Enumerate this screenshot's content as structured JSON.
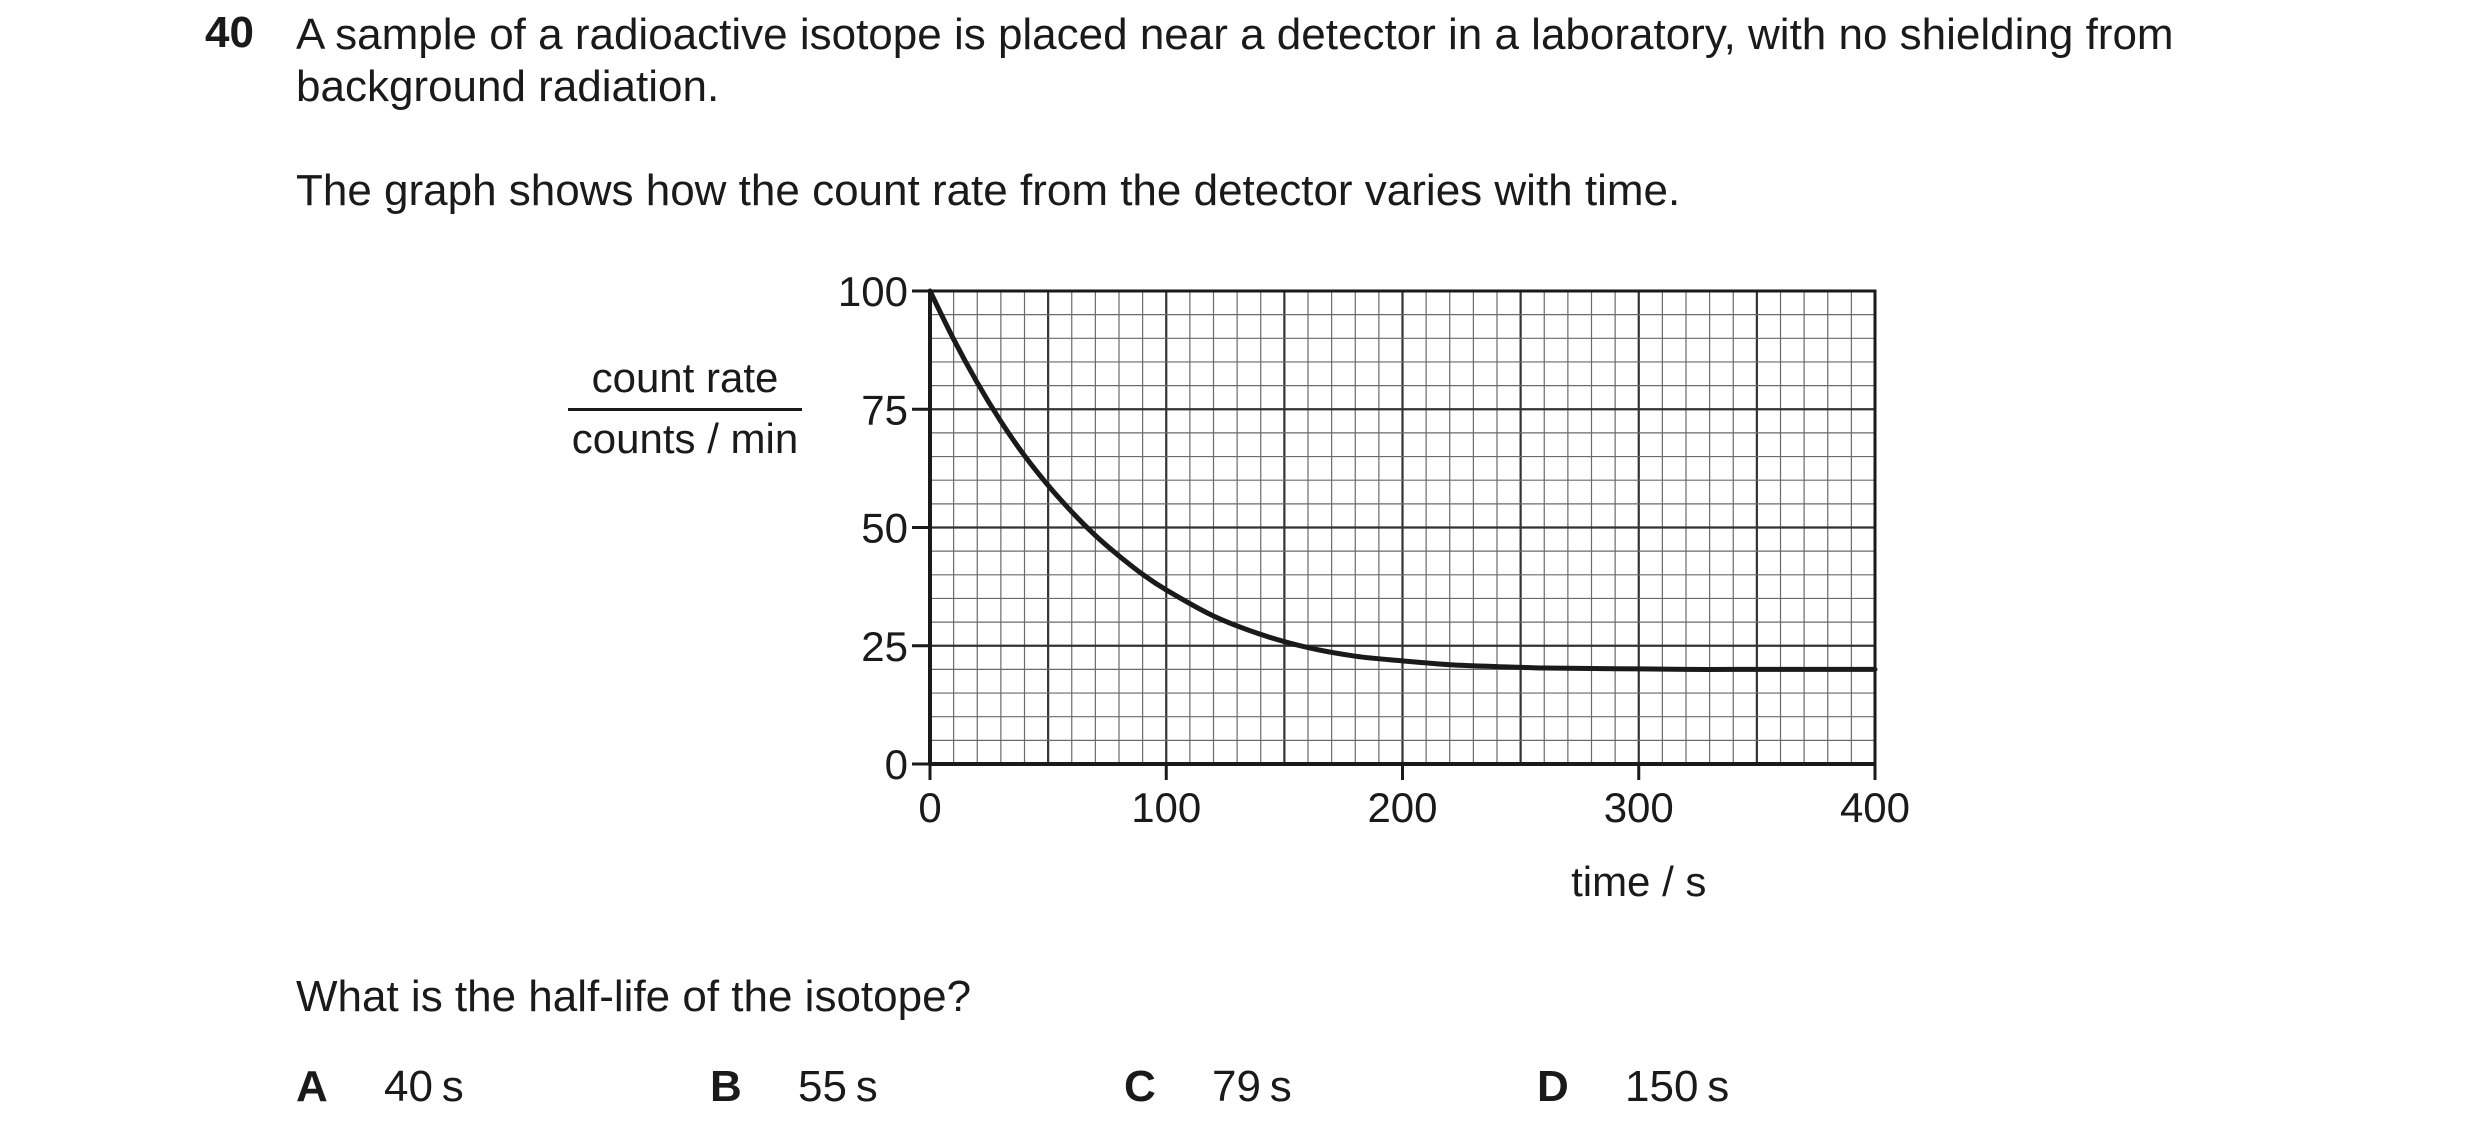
{
  "question": {
    "number": "40",
    "stem_line_1": "A sample of a radioactive isotope is placed near a detector in a laboratory, with no shielding from",
    "stem_line_2": "background radiation.",
    "stem_line_3": "The graph shows how the count rate from the detector varies with time.",
    "prompt": "What is the half-life of the isotope?"
  },
  "options": [
    {
      "letter": "A",
      "value": "40 s"
    },
    {
      "letter": "B",
      "value": "55 s"
    },
    {
      "letter": "C",
      "value": "79 s"
    },
    {
      "letter": "D",
      "value": "150 s"
    }
  ],
  "chart_data": {
    "type": "line",
    "title": "",
    "xlabel": "time / s",
    "ylabel_numerator": "count rate",
    "ylabel_denominator": "counts / min",
    "xlim": [
      0,
      400
    ],
    "ylim": [
      0,
      100
    ],
    "xticks": [
      0,
      100,
      200,
      300,
      400
    ],
    "xtick_labels": [
      "0",
      "100",
      "200",
      "300",
      "400"
    ],
    "yticks": [
      0,
      25,
      50,
      75,
      100
    ],
    "ytick_labels": [
      "0",
      "25",
      "50",
      "75",
      "100"
    ],
    "grid": true,
    "grid_minor_step_x": 10,
    "grid_minor_step_y": 5,
    "grid_major_step_x": 50,
    "grid_major_step_y": 25,
    "series": [
      {
        "x": [
          0,
          10,
          20,
          30,
          40,
          50,
          60,
          70,
          80,
          90,
          100,
          120,
          140,
          160,
          180,
          200,
          220,
          240,
          260,
          280,
          300,
          320,
          340,
          360,
          380,
          400
        ],
        "y": [
          100,
          89.8,
          80.6,
          72.4,
          65.2,
          58.9,
          53.3,
          48.3,
          44.0,
          40.1,
          36.8,
          31.3,
          27.4,
          24.6,
          22.8,
          21.8,
          21.0,
          20.6,
          20.3,
          20.2,
          20.1,
          20.0,
          20.0,
          20.0,
          20.0,
          20.0
        ]
      }
    ]
  }
}
